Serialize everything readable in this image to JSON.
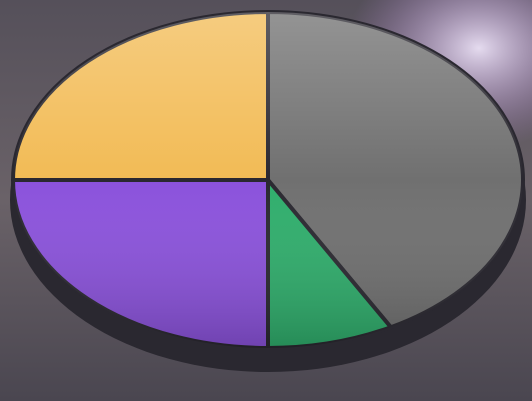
{
  "chart_data": {
    "type": "pie",
    "categories": [
      null,
      null,
      null,
      null
    ],
    "values": [
      42,
      8,
      25,
      25
    ],
    "colors": [
      "#707070",
      "#2fae6c",
      "#8b52dc",
      "#f2bb55"
    ]
  }
}
